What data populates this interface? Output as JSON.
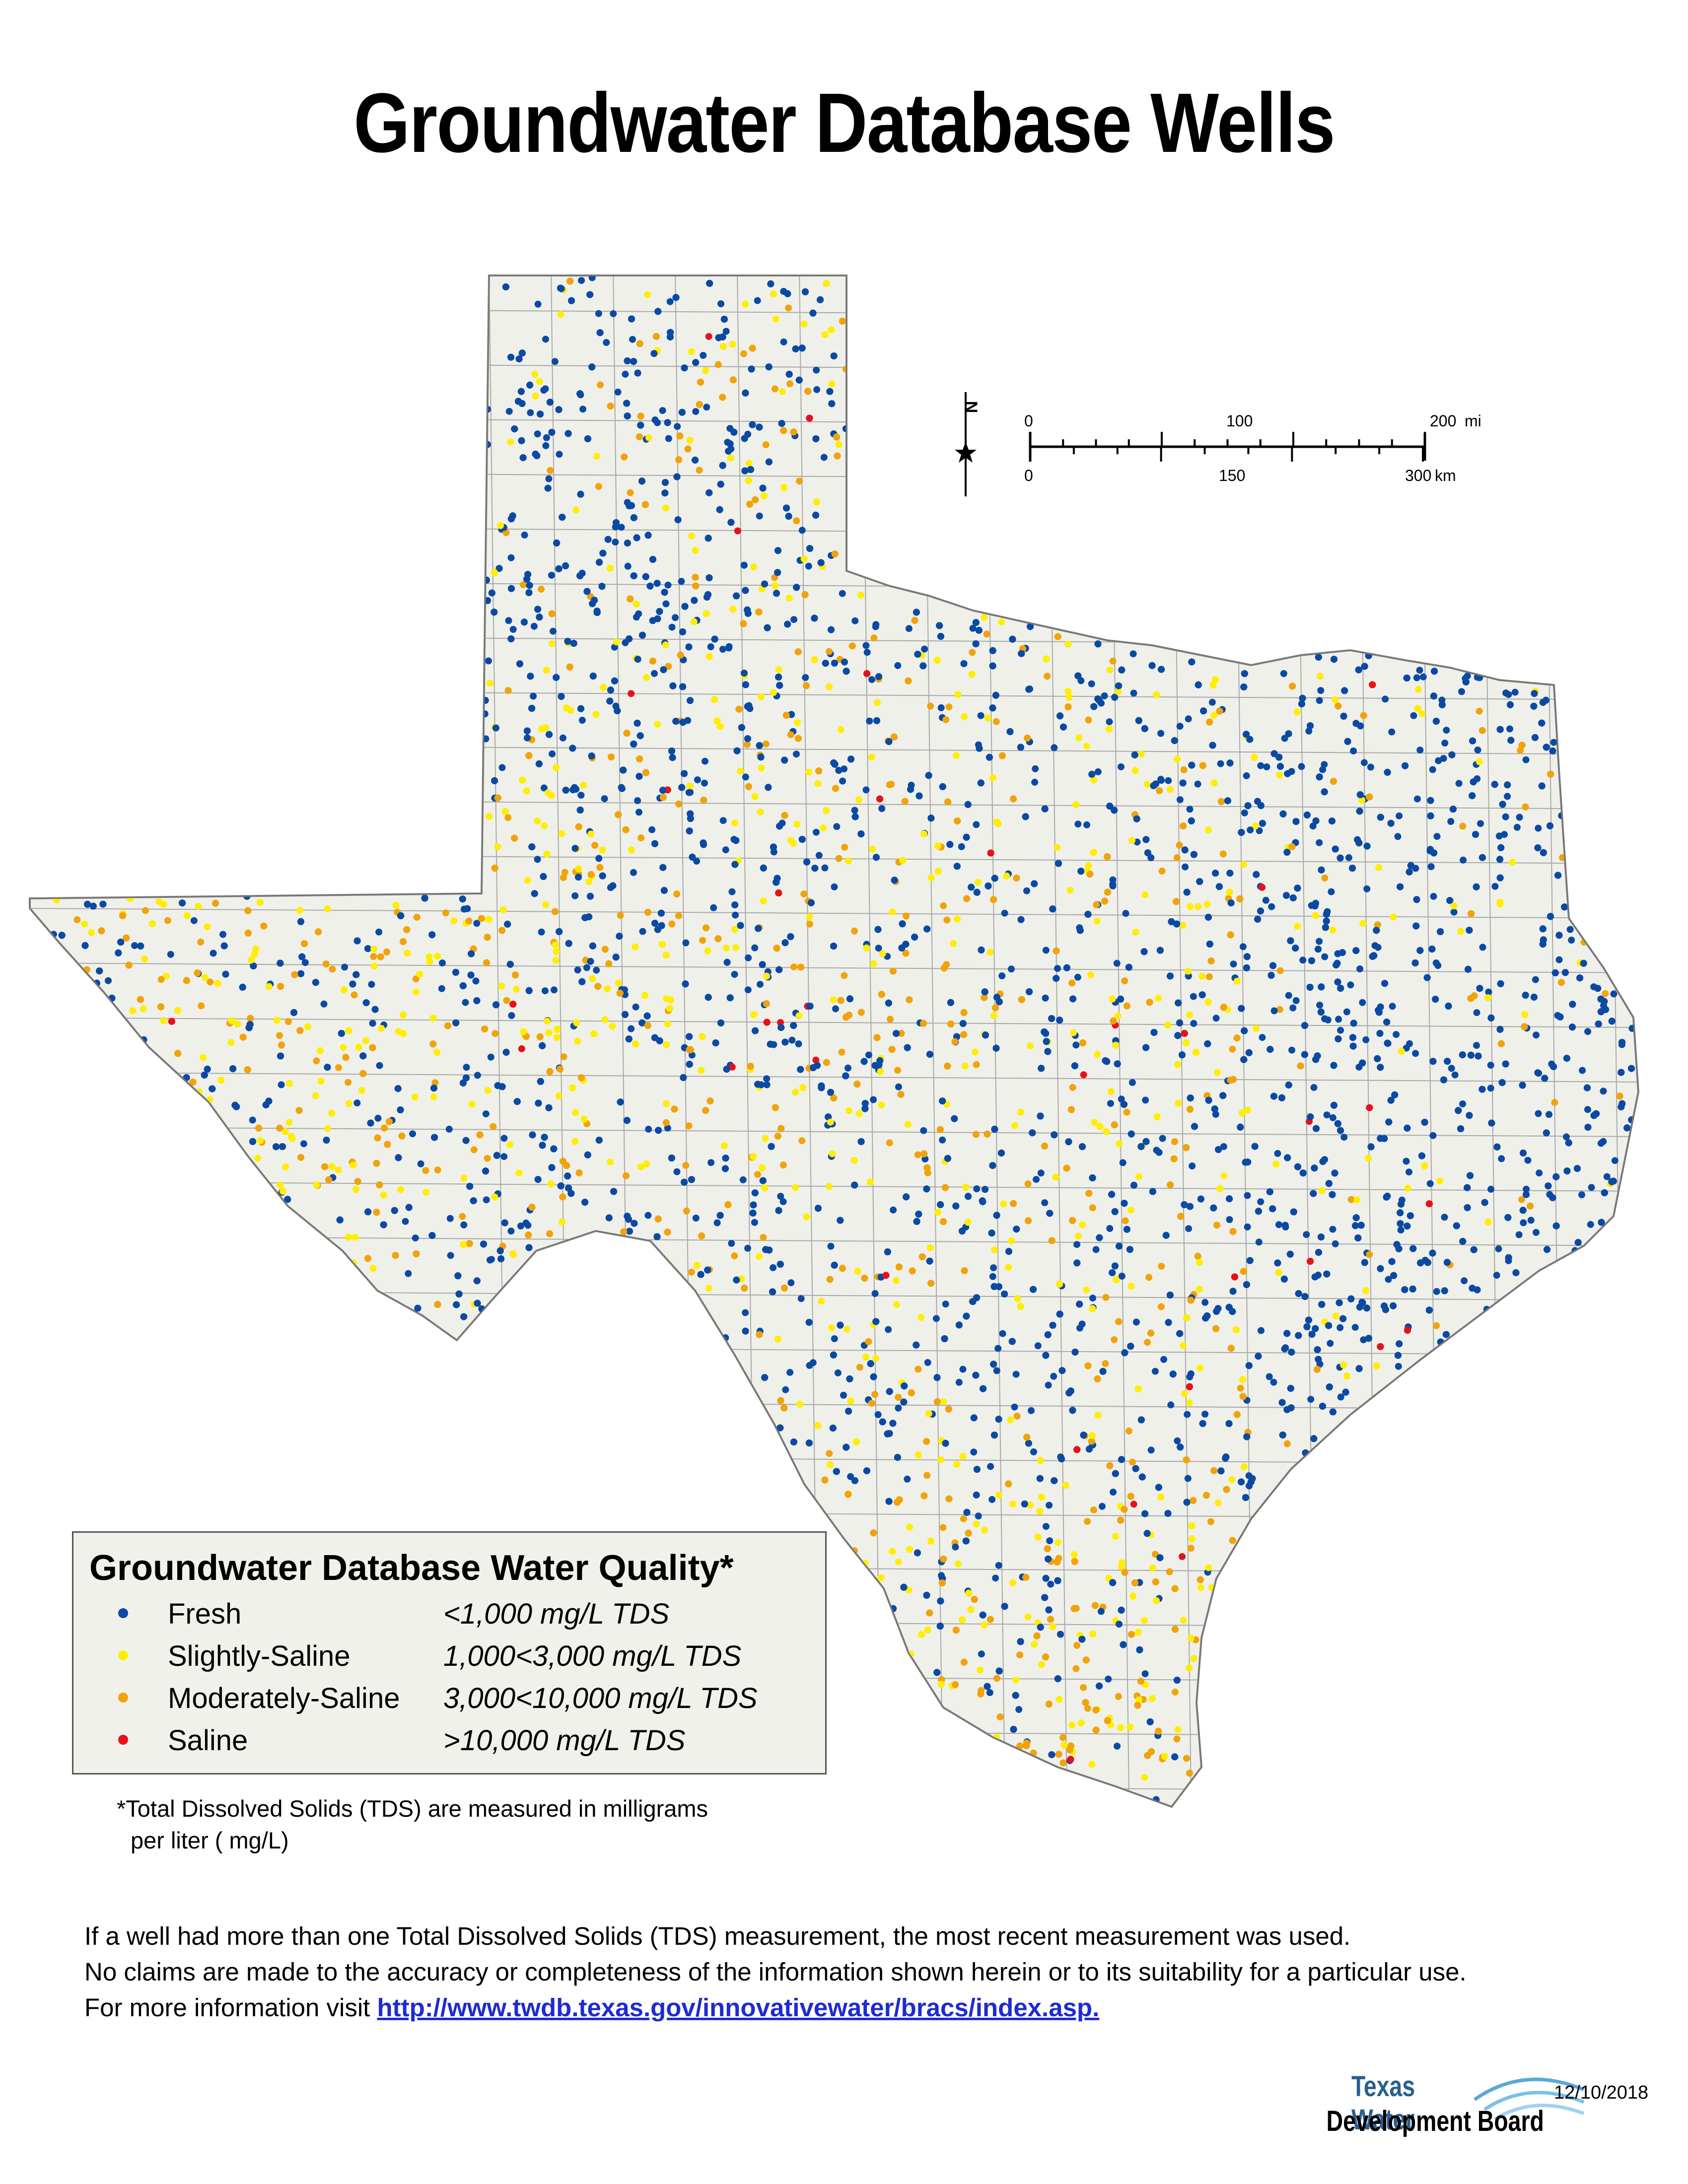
{
  "title": "Groundwater Database Wells",
  "scale_bar": {
    "miles": [
      "0",
      "100",
      "200"
    ],
    "miles_unit": "mi",
    "km": [
      "0",
      "150",
      "300"
    ],
    "km_unit": "km"
  },
  "north_arrow": "north-arrow-icon",
  "legend": {
    "title": "Groundwater Database Water Quality*",
    "items": [
      {
        "label": "Fresh",
        "range": "<1,000 mg/L TDS",
        "color": "#0b4aa2"
      },
      {
        "label": "Slightly-Saline",
        "range": "1,000<3,000 mg/L TDS",
        "color": "#ffee00"
      },
      {
        "label": "Moderately-Saline",
        "range": "3,000<10,000 mg/L TDS",
        "color": "#f0a30a"
      },
      {
        "label": "Saline",
        "range": ">10,000 mg/L TDS",
        "color": "#e8111a"
      }
    ]
  },
  "footnote_line1": "*Total Dissolved Solids (TDS) are measured in milligrams",
  "footnote_line2": "per liter ( mg/L)",
  "notes": {
    "line1": "If a well had more than one Total Dissolved Solids (TDS) measurement, the most recent measurement was used.",
    "line2": "No claims are made to the accuracy or completeness of the information shown herein or to its suitability for a particular use.",
    "line3_prefix": "For more information visit ",
    "link": "http://www.twdb.texas.gov/innovativewater/bracs/index.asp."
  },
  "logo": {
    "line1": "Texas Water",
    "line2": "Development Board"
  },
  "date": "12/10/2018",
  "colors": {
    "land": "#f0f0eb",
    "border": "#9a9a9a",
    "fresh": "#0b4aa2",
    "slight": "#ffee00",
    "moderate": "#f0a30a",
    "saline": "#e8111a"
  }
}
